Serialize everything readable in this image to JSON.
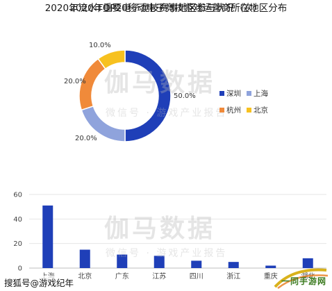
{
  "chart_data": [
    {
      "type": "pie",
      "title": "2020年流水TOP20移动电子竞技游戏运营商所在地区分布",
      "slices": [
        {
          "name": "深圳",
          "value": 50.0,
          "label": "50.0%",
          "color": "#1f3fb8"
        },
        {
          "name": "上海",
          "value": 20.0,
          "label": "20.0%",
          "color": "#8fa3dc"
        },
        {
          "name": "杭州",
          "value": 20.0,
          "label": "20.0%",
          "color": "#f08a3a"
        },
        {
          "name": "北京",
          "value": 10.0,
          "label": "10.0%",
          "color": "#f7c11f"
        }
      ],
      "legend_placement": "right"
    },
    {
      "type": "bar",
      "title": "2020年重要电子竞技赛事地区参与状况（次）",
      "categories": [
        "上海",
        "北京",
        "广东",
        "江苏",
        "四川",
        "浙江",
        "重庆",
        "湖北"
      ],
      "values": [
        51,
        15,
        11,
        10,
        6,
        5,
        2,
        8
      ],
      "ylim": [
        0,
        60
      ],
      "yticks": [
        "0",
        "20",
        "40",
        "60"
      ],
      "grid": true,
      "bar_color": "#1f3fb8"
    }
  ],
  "legend": {
    "row1": [
      {
        "label": "深圳",
        "color": "#1f3fb8"
      },
      {
        "label": "上海",
        "color": "#8fa3dc"
      }
    ],
    "row2": [
      {
        "label": "杭州",
        "color": "#f08a3a"
      },
      {
        "label": "北京",
        "color": "#f7c11f"
      }
    ]
  },
  "watermark": {
    "main": "伽马数据",
    "sub": "微信号 · 游戏产业报告"
  },
  "footer": {
    "text": "搜狐号@游戏纪年",
    "logo_text": "一同手游网"
  }
}
